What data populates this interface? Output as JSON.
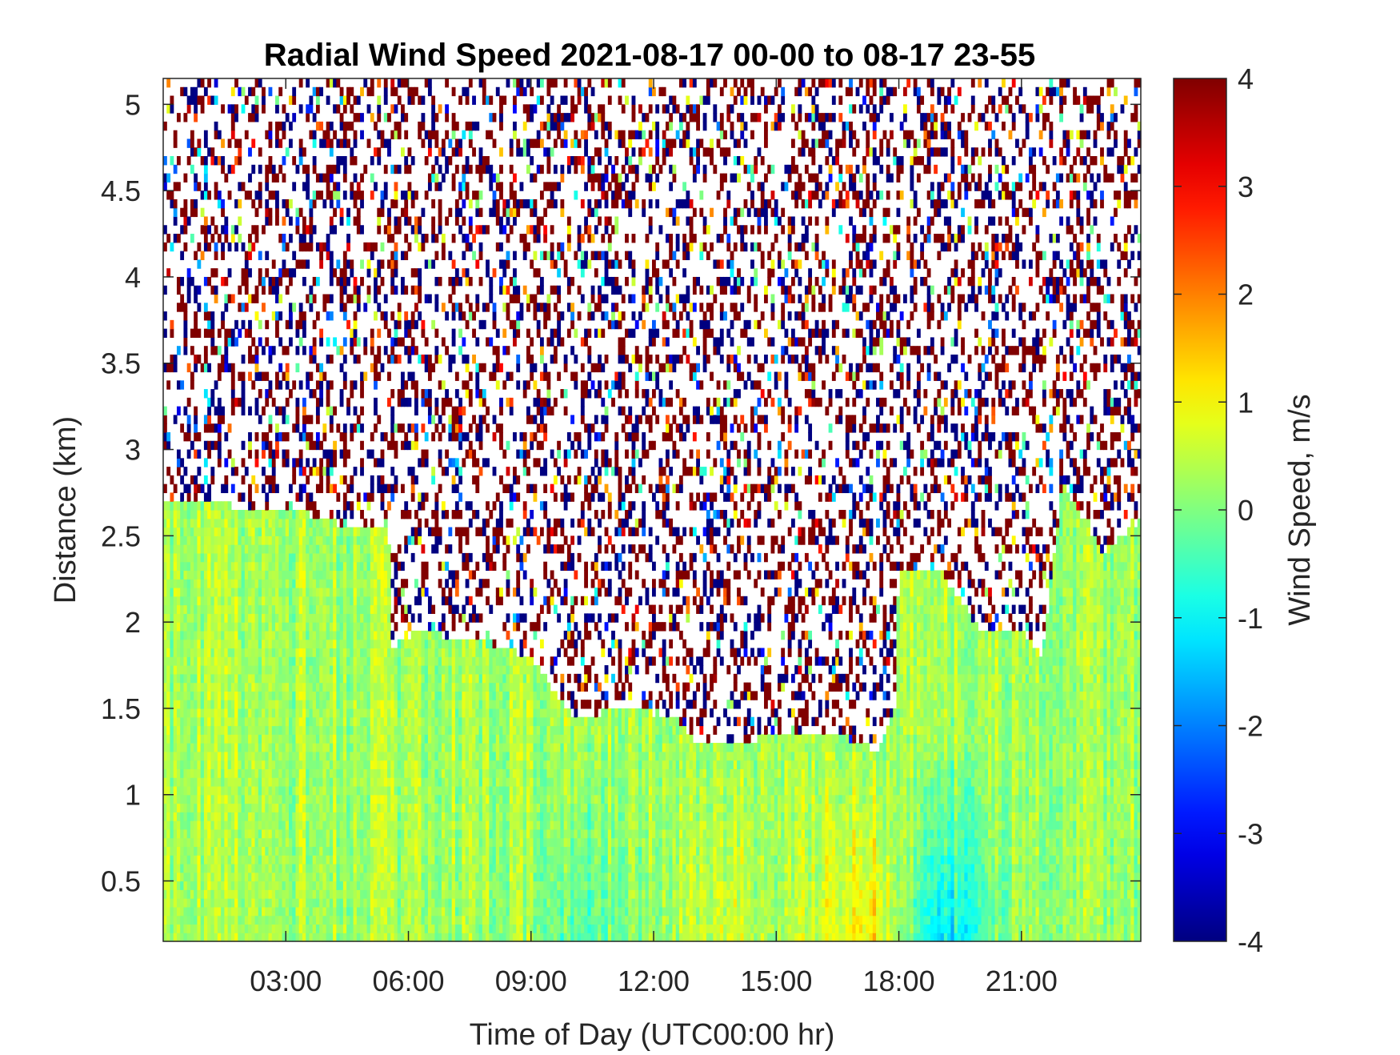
{
  "chart_data": {
    "type": "heatmap",
    "title": "Radial Wind Speed 2021-08-17 00-00 to 08-17 23-55",
    "xlabel": "Time of Day (UTC00:00 hr)",
    "ylabel": "Distance (km)",
    "colorbar_label": "Wind Speed, m/s",
    "colormap": "jet",
    "x_unit": "hour",
    "xlim": [
      0,
      23.92
    ],
    "ylim": [
      0.15,
      5.15
    ],
    "clim": [
      -4,
      4
    ],
    "x_ticks": [
      3,
      6,
      9,
      12,
      15,
      18,
      21
    ],
    "x_tick_labels": [
      "03:00",
      "06:00",
      "09:00",
      "12:00",
      "15:00",
      "18:00",
      "21:00"
    ],
    "y_ticks": [
      0.5,
      1,
      1.5,
      2,
      2.5,
      3,
      3.5,
      4,
      4.5,
      5
    ],
    "y_tick_labels": [
      "0.5",
      "1",
      "1.5",
      "2",
      "2.5",
      "3",
      "3.5",
      "4",
      "4.5",
      "5"
    ],
    "colorbar_ticks": [
      -4,
      -3,
      -2,
      -1,
      0,
      1,
      2,
      3,
      4
    ],
    "colorbar_tick_labels": [
      "-4",
      "-3",
      "-2",
      "-1",
      "0",
      "1",
      "2",
      "3",
      "4"
    ],
    "grid": false,
    "background_noise_region": "above valid-data top: sparse random values clipped to ±4 m/s",
    "valid_data_top_km": {
      "x": [
        0,
        3.3,
        4.5,
        5.5,
        5.6,
        6.2,
        7.5,
        9.0,
        10.0,
        11.5,
        12.5,
        13.0,
        14.0,
        15.0,
        16.5,
        17.5,
        17.9,
        18.0,
        19.0,
        20.0,
        21.0,
        21.5,
        22.0,
        23.0,
        23.92
      ],
      "top": [
        2.7,
        2.65,
        2.55,
        2.55,
        1.85,
        1.95,
        1.9,
        1.8,
        1.45,
        1.5,
        1.45,
        1.3,
        1.3,
        1.35,
        1.35,
        1.25,
        1.5,
        2.3,
        2.3,
        1.95,
        1.95,
        1.8,
        2.8,
        2.4,
        2.6
      ]
    },
    "near_range_mean_m_s": {
      "x": [
        0,
        3,
        6,
        9,
        10,
        12,
        13,
        14,
        15,
        17.5,
        18,
        19,
        20,
        21,
        23.92
      ],
      "value": [
        0.3,
        0.3,
        0.3,
        0.2,
        -0.4,
        0.1,
        0.6,
        0.8,
        0.2,
        1.3,
        0.2,
        -1.3,
        -0.6,
        0.3,
        0.2
      ]
    }
  }
}
